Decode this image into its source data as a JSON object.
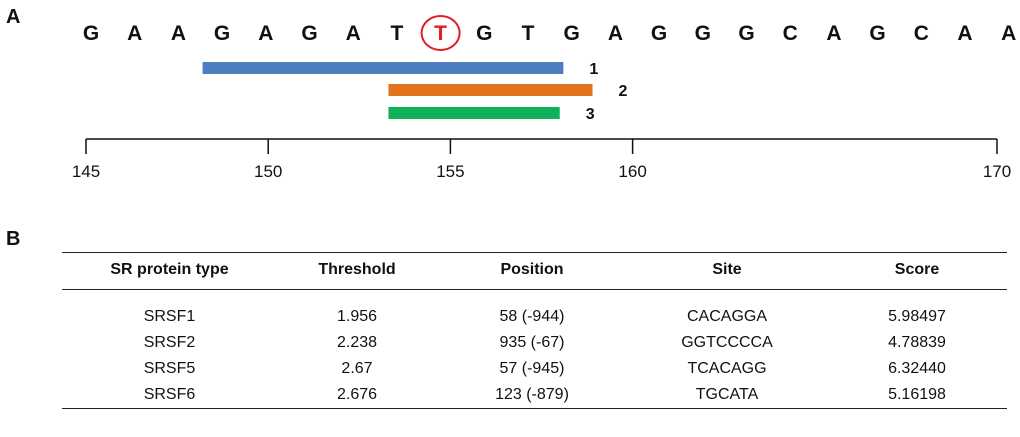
{
  "panels": {
    "a": "A",
    "b": "B"
  },
  "sequence": [
    "G",
    "A",
    "A",
    "G",
    "A",
    "G",
    "A",
    "T",
    "T",
    "G",
    "T",
    "G",
    "A",
    "G",
    "G",
    "G",
    "C",
    "A",
    "G",
    "C",
    "A",
    "A"
  ],
  "highlight_index": 8,
  "bars": [
    {
      "label": "1",
      "start": 148.2,
      "end": 158.1,
      "color": "#4a7fc1"
    },
    {
      "label": "2",
      "start": 153.3,
      "end": 158.9,
      "color": "#e2731c"
    },
    {
      "label": "3",
      "start": 153.3,
      "end": 158.0,
      "color": "#11b15a"
    }
  ],
  "axis": {
    "min": 145,
    "max": 170,
    "ticks": [
      "145",
      "150",
      "155",
      "160",
      "170"
    ]
  },
  "table": {
    "headers": [
      "SR protein type",
      "Threshold",
      "Position",
      "Site",
      "Score"
    ],
    "rows": [
      [
        "SRSF1",
        "1.956",
        "58 (-944)",
        "CACAGGA",
        "5.98497"
      ],
      [
        "SRSF2",
        "2.238",
        "935 (-67)",
        "GGTCCCCA",
        "4.78839"
      ],
      [
        "SRSF5",
        "2.67",
        "57 (-945)",
        "TCACAGG",
        "6.32440"
      ],
      [
        "SRSF6",
        "2.676",
        "123 (-879)",
        "TGCATA",
        "5.16198"
      ]
    ]
  }
}
